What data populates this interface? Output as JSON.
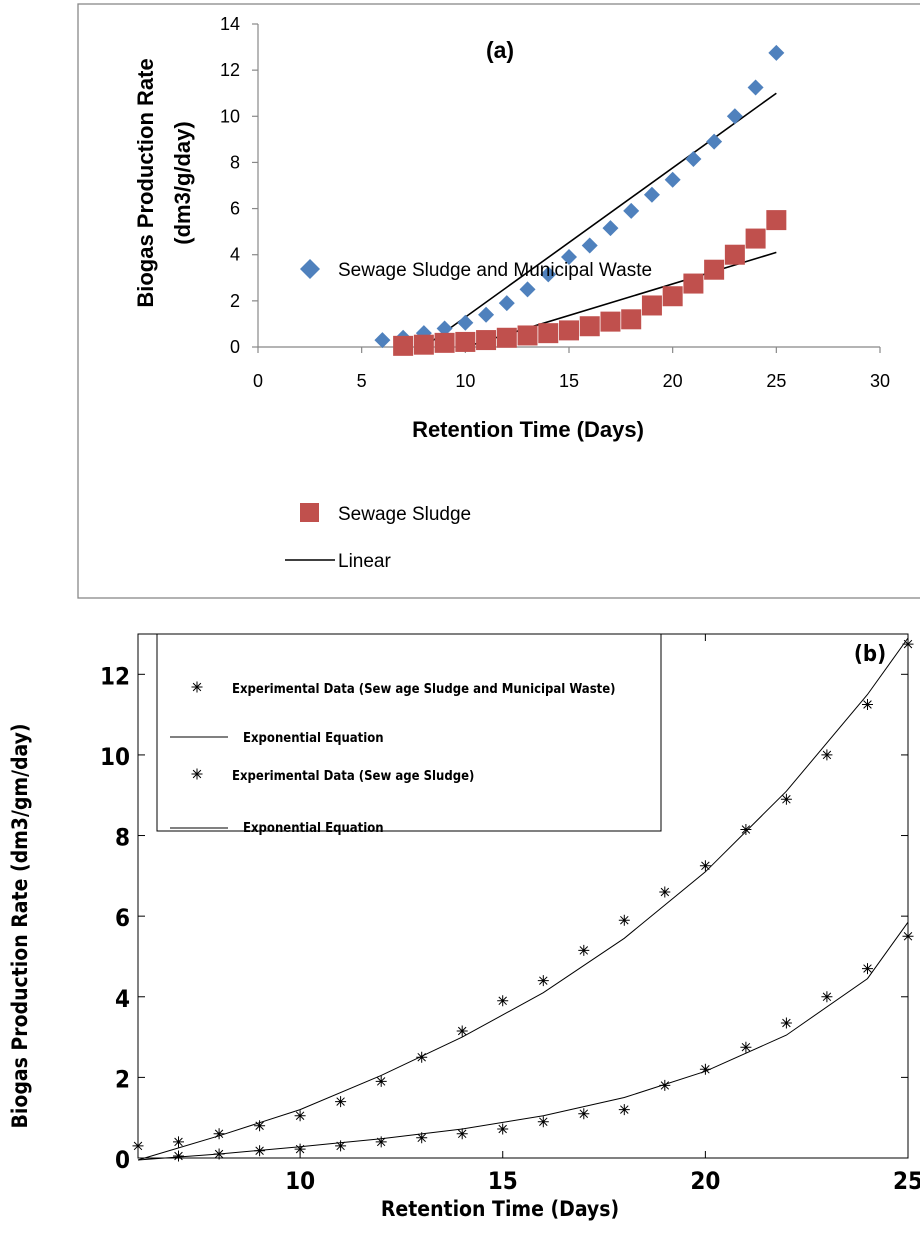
{
  "charts": [
    {
      "id": "a",
      "annotation": "(a)",
      "ylabel_line1": "Biogas Production Rate",
      "ylabel_line2": "(dm3/g/day)",
      "xlabel": "Retention Time (Days)",
      "xticks": [
        "0",
        "5",
        "10",
        "15",
        "20",
        "25",
        "30"
      ],
      "yticks": [
        "0",
        "2",
        "4",
        "6",
        "8",
        "10",
        "12",
        "14"
      ],
      "legend": [
        "Sewage Sludge and Municipal Waste",
        "Sewage Sludge",
        "Linear"
      ]
    },
    {
      "id": "b",
      "annotation": "(b)",
      "ylabel": "Biogas Production Rate (dm3/gm/day)",
      "xlabel": "Retention Time (Days)",
      "xticks": [
        "10",
        "15",
        "20",
        "25"
      ],
      "yticks": [
        "0",
        "2",
        "4",
        "6",
        "8",
        "10",
        "12"
      ],
      "legend": [
        "Experimental Data (Sew age Sludge and Municipal Waste)",
        "Exponential Equation",
        "Experimental Data (Sew age Sludge)",
        "Exponential Equation"
      ]
    }
  ],
  "chart_data": [
    {
      "type": "scatter",
      "title": "(a)",
      "xlabel": "Retention Time (Days)",
      "ylabel": "Biogas Production Rate (dm3/g/day)",
      "xlim": [
        0,
        30
      ],
      "ylim": [
        0,
        14
      ],
      "grid": false,
      "legend_position": "bottom",
      "colors": {
        "series1": "#4f81bd",
        "series2": "#c0504d",
        "linear": "#000000"
      },
      "series": [
        {
          "name": "Sewage Sludge and Municipal Waste",
          "marker": "diamond",
          "x": [
            6,
            7,
            8,
            9,
            10,
            11,
            12,
            13,
            14,
            15,
            16,
            17,
            18,
            19,
            20,
            21,
            22,
            23,
            24,
            25
          ],
          "y": [
            0.3,
            0.4,
            0.6,
            0.8,
            1.05,
            1.4,
            1.9,
            2.5,
            3.15,
            3.9,
            4.4,
            5.15,
            5.9,
            6.6,
            7.25,
            8.15,
            8.9,
            10.0,
            11.25,
            12.75
          ]
        },
        {
          "name": "Sewage Sludge",
          "marker": "square",
          "x": [
            7,
            8,
            9,
            10,
            11,
            12,
            13,
            14,
            15,
            16,
            17,
            18,
            19,
            20,
            21,
            22,
            23,
            24,
            25
          ],
          "y": [
            0.05,
            0.1,
            0.18,
            0.22,
            0.3,
            0.4,
            0.5,
            0.6,
            0.72,
            0.9,
            1.1,
            1.2,
            1.8,
            2.2,
            2.75,
            3.35,
            4.0,
            4.7,
            5.5
          ]
        }
      ],
      "trendlines": [
        {
          "name": "Linear",
          "x": [
            8,
            25
          ],
          "y": [
            0.0,
            11.0
          ]
        },
        {
          "name": "Linear",
          "x": [
            10,
            25
          ],
          "y": [
            0.0,
            4.1
          ]
        }
      ]
    },
    {
      "type": "scatter",
      "title": "(b)",
      "xlabel": "Retention Time (Days)",
      "ylabel": "Biogas Production Rate (dm3/gm/day)",
      "xlim": [
        6,
        25
      ],
      "ylim": [
        0,
        13
      ],
      "grid": false,
      "legend_position": "top-left",
      "series": [
        {
          "name": "Experimental Data (Sew age Sludge and Municipal Waste)",
          "marker": "star",
          "x": [
            6,
            7,
            8,
            9,
            10,
            11,
            12,
            13,
            14,
            15,
            16,
            17,
            18,
            19,
            20,
            21,
            22,
            23,
            24,
            25
          ],
          "y": [
            0.3,
            0.4,
            0.6,
            0.8,
            1.05,
            1.4,
            1.9,
            2.5,
            3.15,
            3.9,
            4.4,
            5.15,
            5.9,
            6.6,
            7.25,
            8.15,
            8.9,
            10.0,
            11.25,
            12.75
          ]
        },
        {
          "name": "Experimental Data (Sew age Sludge)",
          "marker": "star",
          "x": [
            7,
            8,
            9,
            10,
            11,
            12,
            13,
            14,
            15,
            16,
            17,
            18,
            19,
            20,
            21,
            22,
            23,
            24,
            25
          ],
          "y": [
            0.05,
            0.1,
            0.18,
            0.22,
            0.3,
            0.4,
            0.5,
            0.6,
            0.72,
            0.9,
            1.1,
            1.2,
            1.8,
            2.2,
            2.75,
            3.35,
            4.0,
            4.7,
            5.5
          ]
        }
      ],
      "curves": [
        {
          "name": "Exponential Equation",
          "x": [
            6,
            8,
            10,
            12,
            14,
            16,
            18,
            20,
            22,
            24,
            25
          ],
          "y": [
            -0.05,
            0.55,
            1.2,
            2.05,
            3.0,
            4.1,
            5.45,
            7.1,
            9.1,
            11.5,
            12.9
          ]
        },
        {
          "name": "Exponential Equation",
          "x": [
            6,
            8,
            10,
            12,
            14,
            16,
            18,
            20,
            22,
            24,
            25
          ],
          "y": [
            -0.05,
            0.1,
            0.28,
            0.48,
            0.72,
            1.05,
            1.5,
            2.15,
            3.05,
            4.45,
            5.85
          ]
        }
      ]
    }
  ]
}
